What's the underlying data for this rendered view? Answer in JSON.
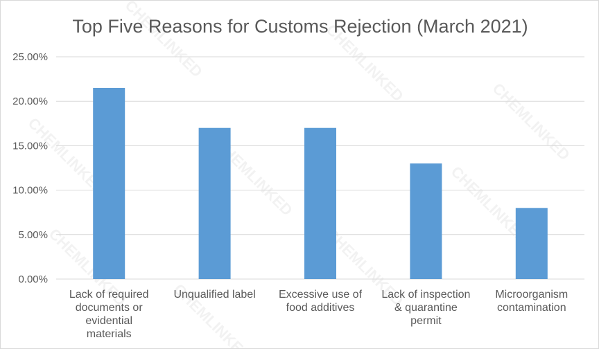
{
  "chart_data": {
    "type": "bar",
    "title": "Top Five Reasons for Customs Rejection (March 2021)",
    "categories": [
      [
        "Lack of required",
        "documents or",
        "evidential",
        "materials"
      ],
      [
        "Unqualified label"
      ],
      [
        "Excessive use of",
        "food additives"
      ],
      [
        "Lack of inspection",
        "& quarantine",
        "permit"
      ],
      [
        "Microorganism",
        "contamination"
      ]
    ],
    "values": [
      21.5,
      17.0,
      17.0,
      13.0,
      8.0
    ],
    "ylim": [
      0,
      25
    ],
    "yticks": [
      0,
      5,
      10,
      15,
      20,
      25
    ],
    "ytick_labels": [
      "0.00%",
      "5.00%",
      "10.00%",
      "15.00%",
      "20.00%",
      "25.00%"
    ],
    "grid": true,
    "bar_color": "#5b9bd5",
    "watermark": "CHEMLINKED"
  }
}
